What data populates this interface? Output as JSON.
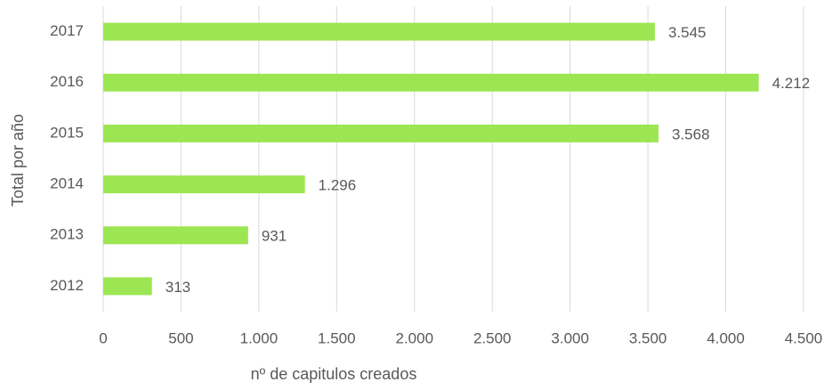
{
  "chart_data": {
    "type": "bar",
    "orientation": "horizontal",
    "categories": [
      "2017",
      "2016",
      "2015",
      "2014",
      "2013",
      "2012"
    ],
    "values": [
      3545,
      4212,
      3568,
      1296,
      931,
      313
    ],
    "value_labels": [
      "3.545",
      "4.212",
      "3.568",
      "1.296",
      "931",
      "313"
    ],
    "color": "#9de653",
    "xlim": [
      0,
      4500
    ],
    "xticks": [
      0,
      500,
      {
        "value": 1000,
        "label": "1.000"
      },
      {
        "value": 1500,
        "label": "1.500"
      },
      {
        "value": 2000,
        "label": "2.000"
      },
      {
        "value": 2500,
        "label": "2.500"
      },
      {
        "value": 3000,
        "label": "3.000"
      },
      {
        "value": 3500,
        "label": "3.500"
      },
      {
        "value": 4000,
        "label": "4.000"
      },
      {
        "value": 4500,
        "label": "4.500"
      }
    ],
    "xlabel": "nº de capitulos creados",
    "ylabel": "Total por año",
    "grid": true
  }
}
